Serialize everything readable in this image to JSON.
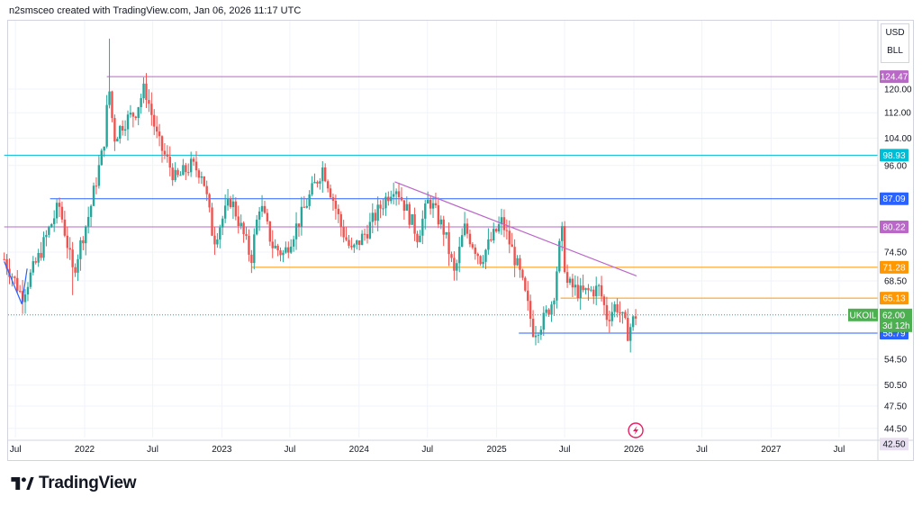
{
  "header": {
    "caption": "n2smsceo created with TradingView.com, Jan 06, 2026 11:17 UTC"
  },
  "currency": {
    "code": "USD",
    "unit": "BLL"
  },
  "brand": {
    "name": "TradingView",
    "icon": "tradingview-logo-icon"
  },
  "colors": {
    "up": "#26a69a",
    "down": "#ef5350",
    "grid": "#f0f3fa",
    "purple": "#ba68c8",
    "cyan": "#00bcd4",
    "blue": "#2962ff",
    "orange": "#ff9800",
    "green": "#4caf50"
  },
  "chart_data": {
    "type": "candlestick",
    "symbol": "UKOIL",
    "current_price": 62.0,
    "countdown": "3d 12h",
    "y_scale": "log",
    "y_ticks": [
      120.0,
      112.0,
      104.0,
      96.0,
      74.5,
      68.5,
      54.5,
      50.5,
      47.5,
      44.5
    ],
    "x_ticks": [
      "Jul",
      "2022",
      "Jul",
      "2023",
      "Jul",
      "2024",
      "Jul",
      "2025",
      "Jul",
      "2026",
      "Jul",
      "2027",
      "Jul"
    ],
    "x_tick_dates": [
      "2021-07-01",
      "2022-01-01",
      "2022-07-01",
      "2023-01-01",
      "2023-07-01",
      "2024-01-01",
      "2024-07-01",
      "2025-01-01",
      "2025-07-01",
      "2026-01-01",
      "2026-07-01",
      "2027-01-01",
      "2027-07-01"
    ],
    "price_levels": [
      {
        "value": 124.47,
        "color": "#ba68c8",
        "from": "2022-03-01"
      },
      {
        "value": 98.93,
        "color": "#00bcd4",
        "from": "2021-06-01"
      },
      {
        "value": 87.09,
        "color": "#2962ff",
        "from": "2021-10-01"
      },
      {
        "value": 80.22,
        "color": "#ba68c8",
        "from": "2021-06-01"
      },
      {
        "value": 71.28,
        "color": "#ff9800",
        "from": "2023-03-20"
      },
      {
        "value": 65.13,
        "color": "#ff9800",
        "from": "2025-06-20"
      },
      {
        "value": 58.79,
        "color": "#2962ff",
        "from": "2025-03-01"
      }
    ],
    "bottom_label": 42.5,
    "trendlines": [
      {
        "color": "#ba68c8",
        "from": [
          "2024-04-05",
          91.5
        ],
        "to": [
          "2026-01-08",
          69.5
        ]
      },
      {
        "color": "#2962ff",
        "from": [
          "2021-06-01",
          72.5
        ],
        "to": [
          "2021-07-18",
          64.0
        ]
      },
      {
        "color": "#2962ff",
        "from": [
          "2021-07-18",
          64.0
        ],
        "to": [
          "2021-08-01",
          71.0
        ]
      }
    ],
    "anchors": [
      [
        "2021-06-01",
        73.0
      ],
      [
        "2021-07-18",
        65.5
      ],
      [
        "2021-09-01",
        73.5
      ],
      [
        "2021-10-25",
        85.5
      ],
      [
        "2021-12-01",
        70.0
      ],
      [
        "2022-01-15",
        84.0
      ],
      [
        "2022-02-20",
        101.0
      ],
      [
        "2022-03-07",
        120.5
      ],
      [
        "2022-03-20",
        104.0
      ],
      [
        "2022-04-15",
        109.0
      ],
      [
        "2022-05-15",
        112.0
      ],
      [
        "2022-06-10",
        120.5
      ],
      [
        "2022-07-15",
        103.0
      ],
      [
        "2022-09-01",
        92.0
      ],
      [
        "2022-10-10",
        96.0
      ],
      [
        "2022-11-10",
        94.0
      ],
      [
        "2022-12-10",
        77.0
      ],
      [
        "2023-01-25",
        87.0
      ],
      [
        "2023-03-20",
        73.0
      ],
      [
        "2023-04-12",
        86.0
      ],
      [
        "2023-05-15",
        76.0
      ],
      [
        "2023-06-15",
        74.0
      ],
      [
        "2023-08-01",
        83.0
      ],
      [
        "2023-09-27",
        95.5
      ],
      [
        "2023-11-15",
        80.0
      ],
      [
        "2023-12-12",
        74.5
      ],
      [
        "2024-01-20",
        79.0
      ],
      [
        "2024-04-05",
        91.0
      ],
      [
        "2024-06-05",
        78.0
      ],
      [
        "2024-07-05",
        87.0
      ],
      [
        "2024-08-15",
        79.0
      ],
      [
        "2024-09-11",
        69.5
      ],
      [
        "2024-10-07",
        80.0
      ],
      [
        "2024-11-20",
        73.0
      ],
      [
        "2025-01-15",
        81.5
      ],
      [
        "2025-03-05",
        69.5
      ],
      [
        "2025-04-09",
        59.0
      ],
      [
        "2025-05-05",
        61.0
      ],
      [
        "2025-06-01",
        65.0
      ],
      [
        "2025-06-23",
        79.5
      ],
      [
        "2025-07-05",
        68.0
      ],
      [
        "2025-08-15",
        66.0
      ],
      [
        "2025-10-01",
        67.0
      ],
      [
        "2025-10-22",
        61.5
      ],
      [
        "2025-11-15",
        64.0
      ],
      [
        "2025-12-16",
        58.9
      ],
      [
        "2026-01-06",
        62.0
      ]
    ],
    "series_start": "2021-06-01",
    "series_end": "2026-01-06",
    "interval": "weekly"
  }
}
